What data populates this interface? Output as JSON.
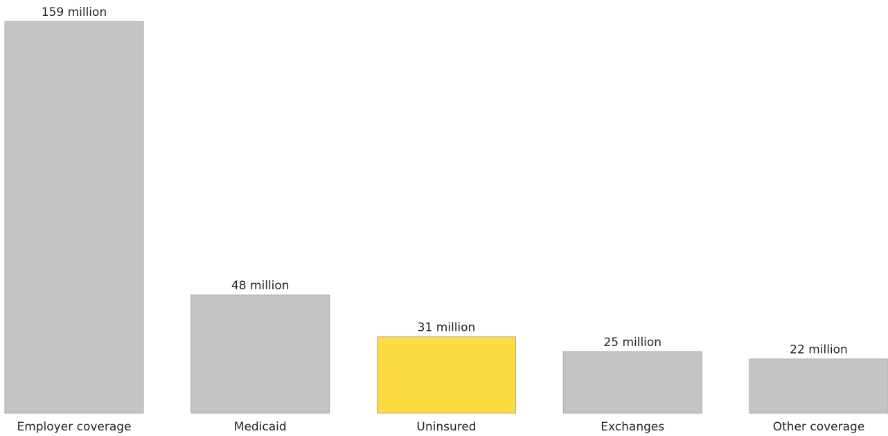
{
  "chart_data": {
    "type": "bar",
    "categories": [
      "Employer coverage",
      "Medicaid",
      "Uninsured",
      "Exchanges",
      "Other coverage"
    ],
    "values": [
      159,
      48,
      31,
      25,
      22
    ],
    "value_labels": [
      "159 million",
      "48 million",
      "31 million",
      "25 million",
      "22 million"
    ],
    "ylim": [
      0,
      159
    ],
    "grid": false,
    "colors": {
      "default_bar": "#c3c4c5",
      "highlight_bar": "#fcdc3e"
    },
    "highlight_category": "Uninsured"
  }
}
